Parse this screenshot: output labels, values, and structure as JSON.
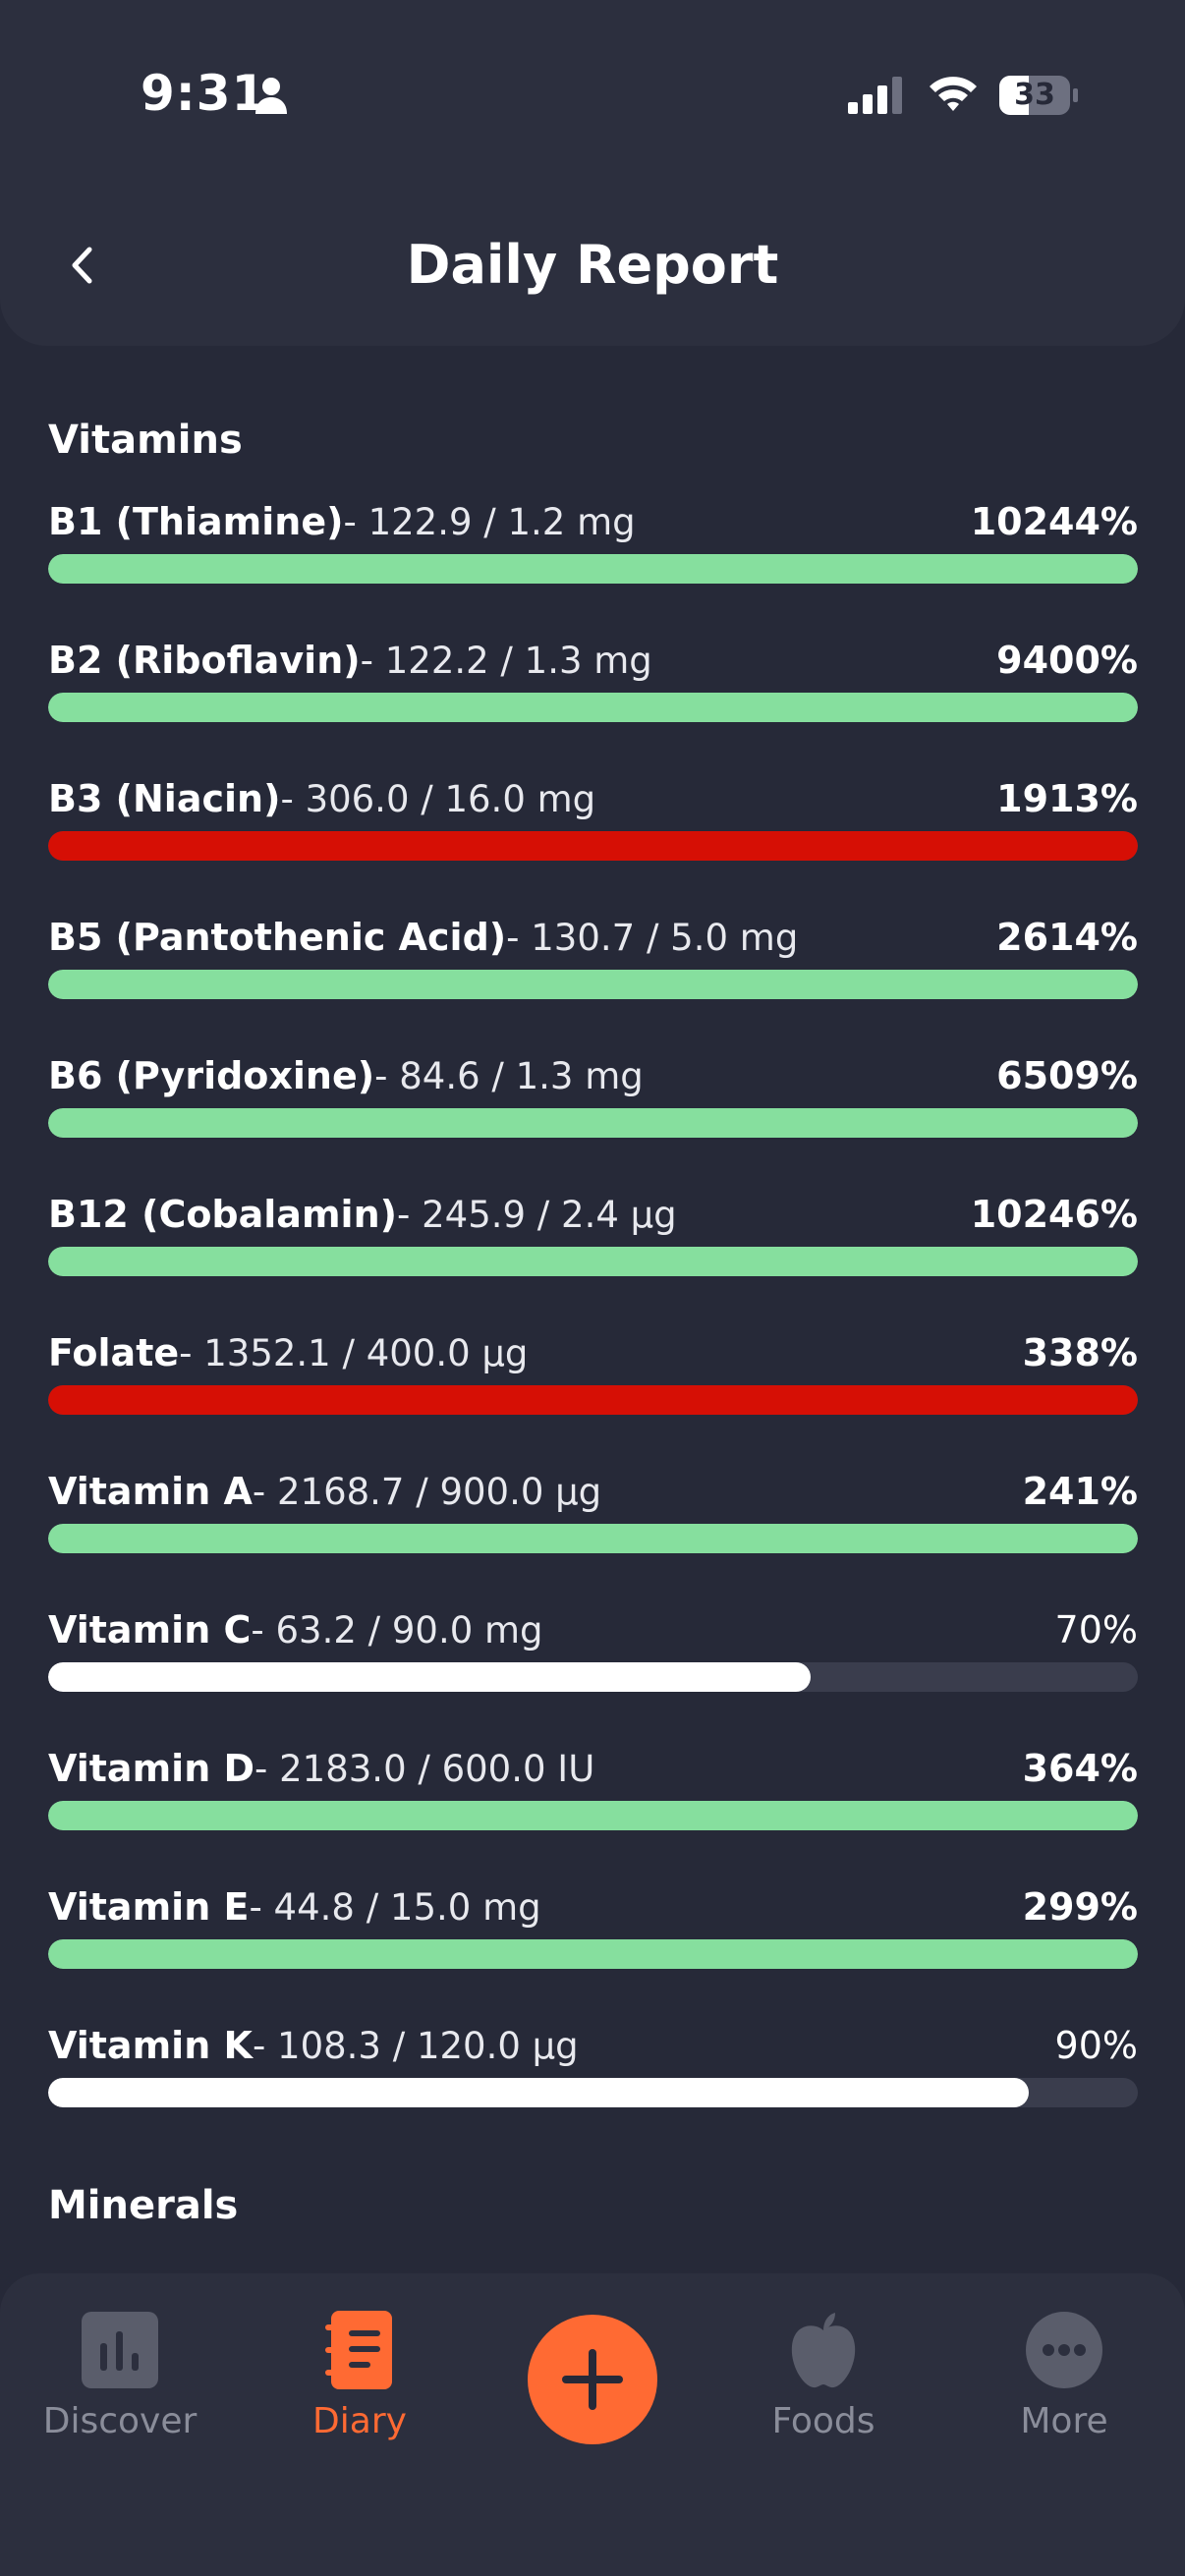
{
  "status_bar": {
    "time": "9:31",
    "battery": "33"
  },
  "header": {
    "title": "Daily Report"
  },
  "sections": {
    "vitamins_title": "Vitamins",
    "minerals_title": "Minerals"
  },
  "colors": {
    "over_target": "#86df9e",
    "warning": "#d60f05",
    "under_target": "#ffffff",
    "track": "#3a3d4d",
    "accent": "#ff6a33"
  },
  "vitamins": [
    {
      "name": "B1 (Thiamine)",
      "amount": "- 122.9 / 1.2 mg",
      "percent": "10244%",
      "fill": 1.0,
      "status": "over_target",
      "bold": true
    },
    {
      "name": "B2 (Riboflavin)",
      "amount": "- 122.2 / 1.3 mg",
      "percent": "9400%",
      "fill": 1.0,
      "status": "over_target",
      "bold": true
    },
    {
      "name": "B3 (Niacin)",
      "amount": "- 306.0 / 16.0 mg",
      "percent": "1913%",
      "fill": 1.0,
      "status": "warning",
      "bold": true
    },
    {
      "name": "B5 (Pantothenic Acid)",
      "amount": "- 130.7 / 5.0 mg",
      "percent": "2614%",
      "fill": 1.0,
      "status": "over_target",
      "bold": true
    },
    {
      "name": "B6 (Pyridoxine)",
      "amount": "- 84.6 / 1.3 mg",
      "percent": "6509%",
      "fill": 1.0,
      "status": "over_target",
      "bold": true
    },
    {
      "name": "B12 (Cobalamin)",
      "amount": "- 245.9 / 2.4 µg",
      "percent": "10246%",
      "fill": 1.0,
      "status": "over_target",
      "bold": true
    },
    {
      "name": "Folate",
      "amount": "- 1352.1 / 400.0 µg",
      "percent": "338%",
      "fill": 1.0,
      "status": "warning",
      "bold": true
    },
    {
      "name": "Vitamin A",
      "amount": "- 2168.7 / 900.0 µg",
      "percent": "241%",
      "fill": 1.0,
      "status": "over_target",
      "bold": true
    },
    {
      "name": "Vitamin C",
      "amount": "- 63.2 / 90.0 mg",
      "percent": "70%",
      "fill": 0.7,
      "status": "under_target",
      "bold": false
    },
    {
      "name": "Vitamin D",
      "amount": "- 2183.0 / 600.0 IU",
      "percent": "364%",
      "fill": 1.0,
      "status": "over_target",
      "bold": true
    },
    {
      "name": "Vitamin E",
      "amount": "- 44.8 / 15.0 mg",
      "percent": "299%",
      "fill": 1.0,
      "status": "over_target",
      "bold": true
    },
    {
      "name": "Vitamin K",
      "amount": "- 108.3 / 120.0 µg",
      "percent": "90%",
      "fill": 0.9,
      "status": "under_target",
      "bold": false
    }
  ],
  "bottom_nav": {
    "discover": "Discover",
    "diary": "Diary",
    "foods": "Foods",
    "more": "More"
  }
}
